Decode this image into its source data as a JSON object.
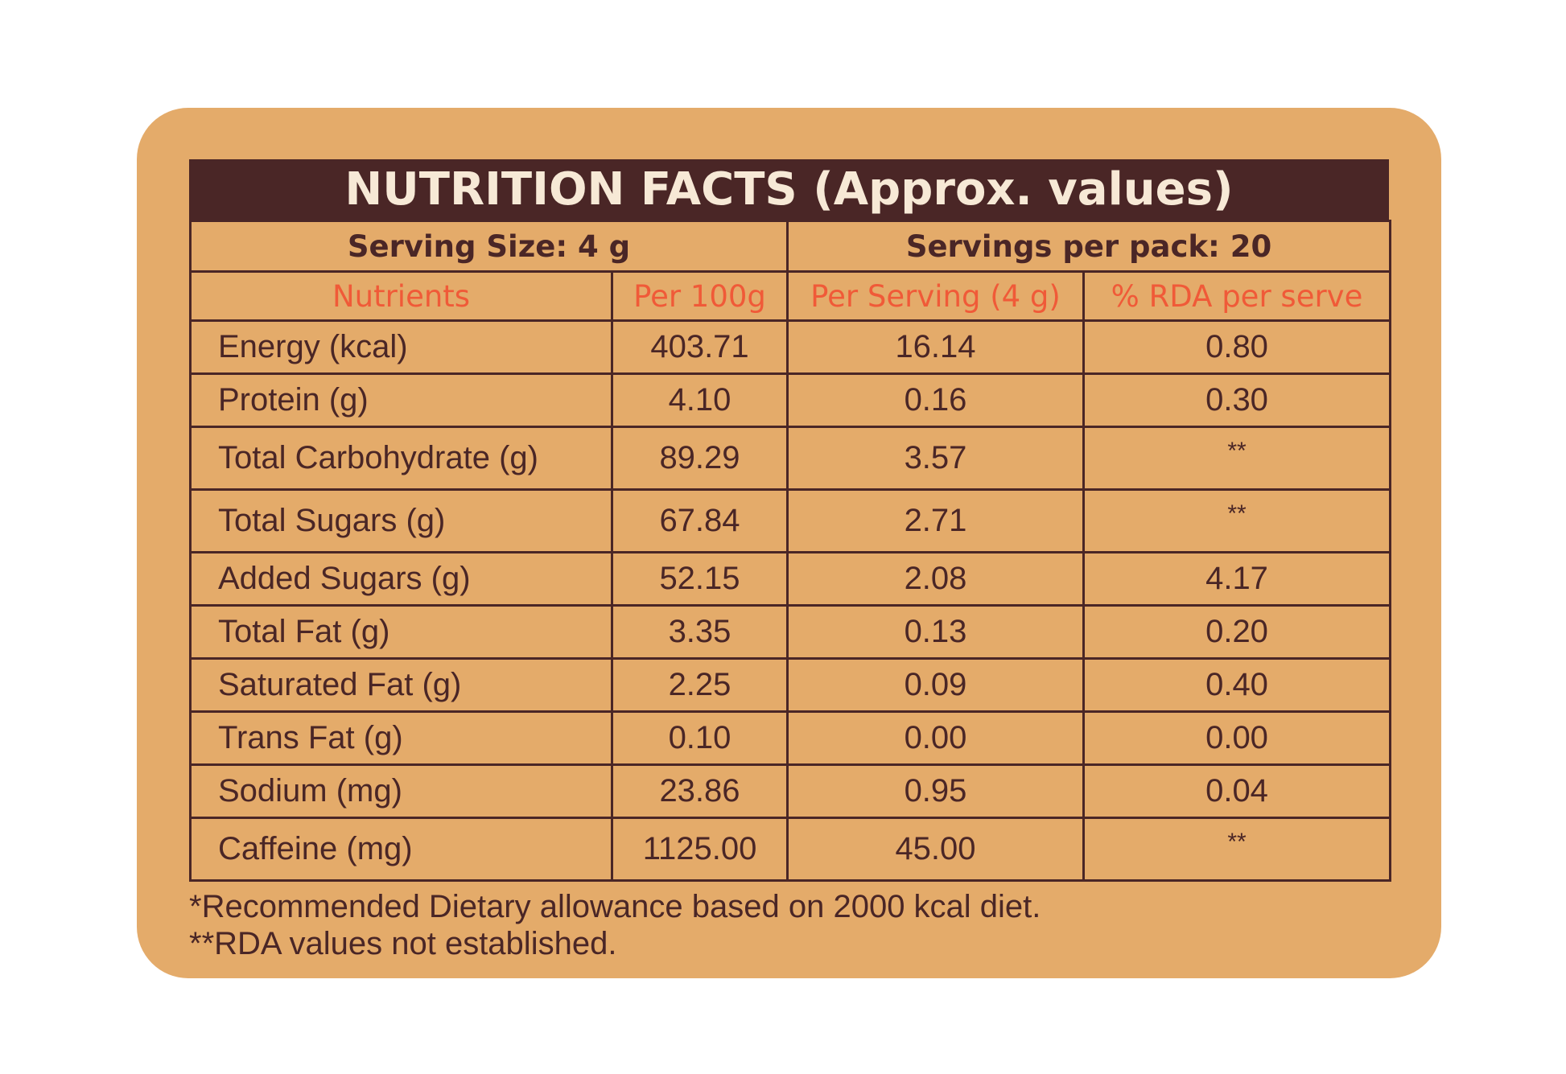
{
  "title": "NUTRITION FACTS (Approx. values)",
  "serving": {
    "size": "Serving Size: 4 g",
    "per_pack": "Servings per pack: 20"
  },
  "headers": [
    "Nutrients",
    "Per 100g",
    "Per Serving (4 g)",
    "% RDA per serve"
  ],
  "rows": [
    {
      "name": "Energy (kcal)",
      "per100": "403.71",
      "perServing": "16.14",
      "rda": "0.80"
    },
    {
      "name": "Protein (g)",
      "per100": "4.10",
      "perServing": "0.16",
      "rda": "0.30"
    },
    {
      "name": "Total Carbohydrate (g)",
      "per100": "89.29",
      "perServing": "3.57",
      "rda": "**"
    },
    {
      "name": "Total Sugars (g)",
      "per100": "67.84",
      "perServing": "2.71",
      "rda": "**"
    },
    {
      "name": "Added Sugars (g)",
      "per100": "52.15",
      "perServing": "2.08",
      "rda": "4.17"
    },
    {
      "name": "Total Fat (g)",
      "per100": "3.35",
      "perServing": "0.13",
      "rda": "0.20"
    },
    {
      "name": "Saturated Fat (g)",
      "per100": "2.25",
      "perServing": "0.09",
      "rda": "0.40"
    },
    {
      "name": "Trans Fat (g)",
      "per100": "0.10",
      "perServing": "0.00",
      "rda": "0.00"
    },
    {
      "name": "Sodium (mg)",
      "per100": "23.86",
      "perServing": "0.95",
      "rda": "0.04"
    },
    {
      "name": "Caffeine (mg)",
      "per100": "1125.00",
      "perServing": "45.00",
      "rda": "**"
    }
  ],
  "footnotes": [
    "*Recommended Dietary allowance based on 2000 kcal diet.",
    "**RDA values not established."
  ],
  "colors": {
    "card": "#e4ab6a",
    "dark": "#4a2626",
    "accent": "#f05a38",
    "title_text": "#f7e9d6"
  }
}
